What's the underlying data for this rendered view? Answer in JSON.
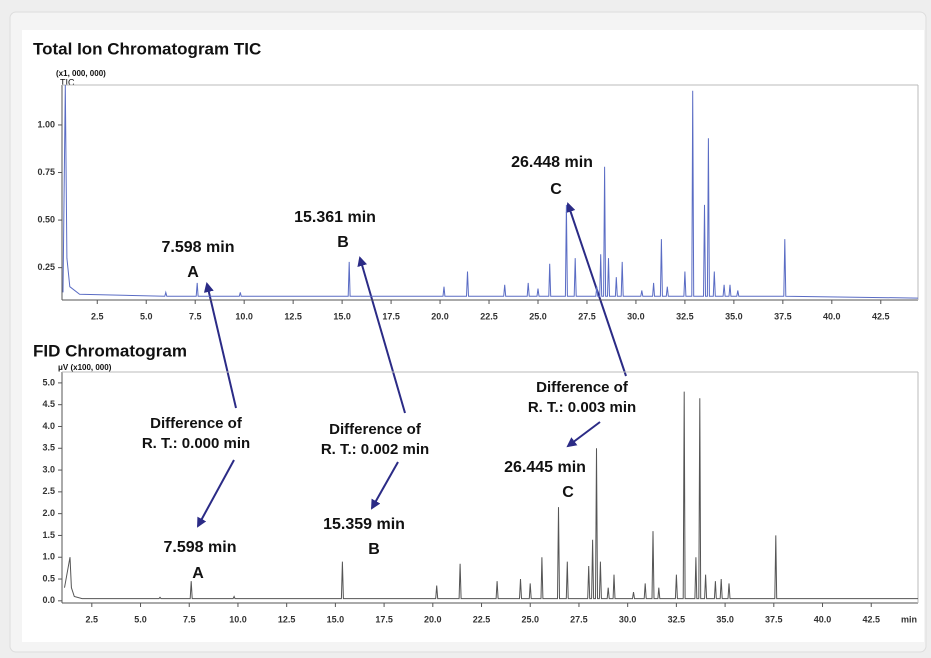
{
  "chart_data": [
    {
      "type": "line",
      "title": "Total Ion Chromatogram TIC",
      "y_unit": "(x1, 000, 000)",
      "x": [
        0.75,
        0.87,
        0.95,
        1.1,
        1.6,
        5.95,
        6.0,
        6.05,
        7.55,
        7.6,
        7.65,
        9.75,
        9.8,
        9.85,
        15.31,
        15.36,
        15.41,
        20.15,
        20.2,
        20.25,
        21.35,
        21.4,
        21.45,
        23.25,
        23.3,
        23.35,
        24.45,
        24.5,
        24.55,
        24.95,
        25.0,
        25.05,
        25.55,
        25.6,
        25.65,
        26.4,
        26.45,
        26.5,
        26.85,
        26.9,
        26.95,
        27.95,
        28.0,
        28.05,
        28.15,
        28.2,
        28.25,
        28.35,
        28.4,
        28.45,
        28.55,
        28.6,
        28.65,
        28.95,
        29.0,
        29.05,
        29.25,
        29.3,
        29.35,
        30.25,
        30.3,
        30.35,
        30.85,
        30.9,
        30.95,
        31.25,
        31.3,
        31.35,
        31.55,
        31.6,
        31.65,
        32.45,
        32.5,
        32.55,
        32.85,
        32.9,
        32.95,
        33.45,
        33.5,
        33.55,
        33.65,
        33.7,
        33.75,
        33.95,
        34.0,
        34.05,
        34.45,
        34.5,
        34.55,
        34.75,
        34.8,
        34.85,
        35.15,
        35.2,
        35.25,
        37.55,
        37.6,
        37.65,
        44.4
      ],
      "series": [
        {
          "name": "TIC",
          "color": "#5a6cc4",
          "values": [
            0.12,
            1.21,
            0.3,
            0.15,
            0.11,
            0.1,
            0.12,
            0.1,
            0.1,
            0.17,
            0.1,
            0.1,
            0.12,
            0.1,
            0.1,
            0.28,
            0.1,
            0.1,
            0.15,
            0.1,
            0.1,
            0.23,
            0.1,
            0.1,
            0.16,
            0.1,
            0.1,
            0.17,
            0.1,
            0.1,
            0.14,
            0.1,
            0.1,
            0.27,
            0.1,
            0.1,
            0.58,
            0.1,
            0.1,
            0.3,
            0.1,
            0.1,
            0.15,
            0.1,
            0.1,
            0.32,
            0.1,
            0.1,
            0.78,
            0.1,
            0.1,
            0.3,
            0.1,
            0.1,
            0.2,
            0.1,
            0.1,
            0.28,
            0.1,
            0.1,
            0.13,
            0.1,
            0.1,
            0.17,
            0.1,
            0.1,
            0.4,
            0.1,
            0.1,
            0.15,
            0.1,
            0.1,
            0.23,
            0.1,
            0.1,
            1.18,
            0.1,
            0.1,
            0.58,
            0.1,
            0.1,
            0.93,
            0.1,
            0.1,
            0.23,
            0.1,
            0.1,
            0.16,
            0.1,
            0.1,
            0.16,
            0.1,
            0.1,
            0.13,
            0.1,
            0.1,
            0.4,
            0.1,
            0.09
          ]
        }
      ],
      "xlim": [
        0.7,
        44.4
      ],
      "ylim": [
        0.08,
        1.21
      ],
      "xticks": [
        2.5,
        {
          "value": 5,
          "label": "5.0"
        },
        7.5,
        {
          "value": 10,
          "label": "10.0"
        },
        12.5,
        {
          "value": 15,
          "label": "15.0"
        },
        17.5,
        {
          "value": 20,
          "label": "20.0"
        },
        22.5,
        {
          "value": 25,
          "label": "25.0"
        },
        27.5,
        {
          "value": 30,
          "label": "30.0"
        },
        32.5,
        {
          "value": 35,
          "label": "35.0"
        },
        37.5,
        {
          "value": 40,
          "label": "40.0"
        },
        42.5
      ],
      "yticks": [
        0.25,
        {
          "value": 0.5,
          "label": "0.50"
        },
        0.75,
        {
          "value": 1,
          "label": "1.00"
        }
      ],
      "annotations": [
        "7.598 min",
        "A",
        "15.361 min",
        "B",
        "26.448 min",
        "C"
      ]
    },
    {
      "type": "line",
      "title": "FID Chromatogram",
      "y_unit": "μV (x100, 000)",
      "x_label": "min",
      "x": [
        1.1,
        1.38,
        1.45,
        1.6,
        2.0,
        5.95,
        6.0,
        6.05,
        7.55,
        7.6,
        7.65,
        9.75,
        9.8,
        9.85,
        15.31,
        15.36,
        15.41,
        20.15,
        20.2,
        20.25,
        21.35,
        21.4,
        21.45,
        23.25,
        23.3,
        23.35,
        24.45,
        24.5,
        24.55,
        24.95,
        25.0,
        25.05,
        25.55,
        25.6,
        25.65,
        26.4,
        26.45,
        26.5,
        26.85,
        26.9,
        26.95,
        27.95,
        28.0,
        28.05,
        28.15,
        28.2,
        28.25,
        28.35,
        28.4,
        28.45,
        28.55,
        28.6,
        28.65,
        28.95,
        29.0,
        29.05,
        29.25,
        29.3,
        29.35,
        30.25,
        30.3,
        30.35,
        30.85,
        30.9,
        30.95,
        31.25,
        31.3,
        31.35,
        31.55,
        31.6,
        31.65,
        32.45,
        32.5,
        32.55,
        32.85,
        32.9,
        32.95,
        33.45,
        33.5,
        33.55,
        33.65,
        33.7,
        33.75,
        33.95,
        34.0,
        34.05,
        34.45,
        34.5,
        34.55,
        34.75,
        34.8,
        34.85,
        35.15,
        35.2,
        35.25,
        37.55,
        37.6,
        37.65,
        44.9
      ],
      "series": [
        {
          "name": "FID",
          "color": "#555555",
          "values": [
            0.3,
            1.0,
            0.3,
            0.1,
            0.05,
            0.05,
            0.08,
            0.05,
            0.05,
            0.45,
            0.05,
            0.05,
            0.1,
            0.05,
            0.05,
            0.9,
            0.05,
            0.05,
            0.35,
            0.05,
            0.05,
            0.85,
            0.05,
            0.05,
            0.45,
            0.05,
            0.05,
            0.5,
            0.05,
            0.05,
            0.4,
            0.05,
            0.05,
            1.0,
            0.05,
            0.05,
            2.15,
            0.05,
            0.05,
            0.9,
            0.05,
            0.05,
            0.8,
            0.05,
            0.05,
            1.4,
            0.05,
            0.05,
            3.5,
            0.05,
            0.05,
            0.9,
            0.05,
            0.05,
            0.3,
            0.05,
            0.05,
            0.6,
            0.05,
            0.05,
            0.2,
            0.05,
            0.05,
            0.4,
            0.05,
            0.05,
            1.6,
            0.05,
            0.05,
            0.3,
            0.05,
            0.05,
            0.6,
            0.05,
            0.05,
            4.8,
            0.05,
            0.05,
            1.0,
            0.05,
            0.05,
            4.65,
            0.05,
            0.05,
            0.6,
            0.05,
            0.05,
            0.45,
            0.05,
            0.05,
            0.5,
            0.05,
            0.05,
            0.4,
            0.05,
            0.05,
            1.5,
            0.05,
            0.05
          ]
        }
      ],
      "xlim": [
        0.97,
        44.9
      ],
      "ylim": [
        -0.05,
        5.25
      ],
      "xticks": [
        2.5,
        {
          "value": 5,
          "label": "5.0"
        },
        7.5,
        {
          "value": 10,
          "label": "10.0"
        },
        12.5,
        {
          "value": 15,
          "label": "15.0"
        },
        17.5,
        {
          "value": 20,
          "label": "20.0"
        },
        22.5,
        {
          "value": 25,
          "label": "25.0"
        },
        27.5,
        {
          "value": 30,
          "label": "30.0"
        },
        32.5,
        {
          "value": 35,
          "label": "35.0"
        },
        37.5,
        {
          "value": 40,
          "label": "40.0"
        },
        42.5
      ],
      "yticks": [
        {
          "value": 0,
          "label": "0.0"
        },
        0.5,
        {
          "value": 1,
          "label": "1.0"
        },
        1.5,
        {
          "value": 2,
          "label": "2.0"
        },
        2.5,
        {
          "value": 3,
          "label": "3.0"
        },
        3.5,
        {
          "value": 4,
          "label": "4.0"
        },
        4.5,
        {
          "value": 5,
          "label": "5.0"
        }
      ],
      "annotations": [
        "26.445 min",
        "C",
        "15.359 min",
        "B",
        "7.598 min",
        "A"
      ]
    }
  ],
  "notes": [
    [
      "Difference of",
      "R. T.: 0.000 min"
    ],
    [
      "Difference of",
      "R. T.: 0.002 min"
    ],
    [
      "Difference of",
      "R. T.: 0.003 min"
    ]
  ]
}
